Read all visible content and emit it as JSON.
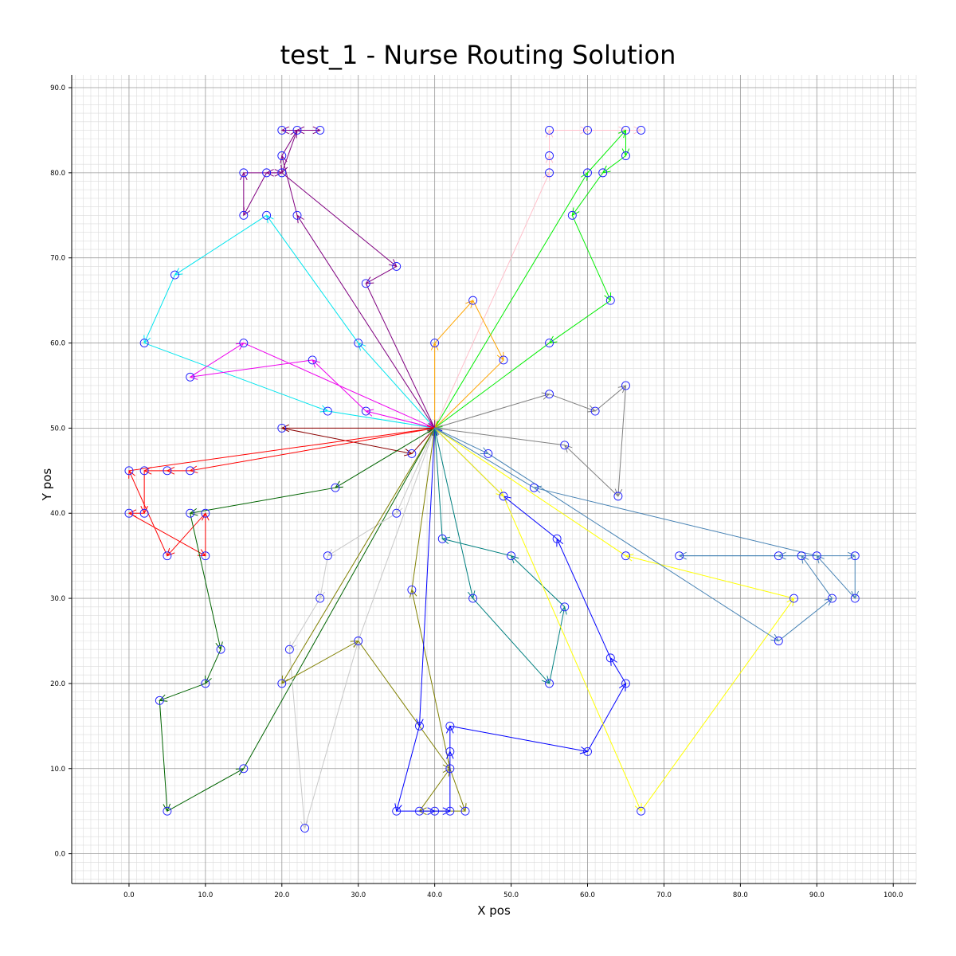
{
  "chart_data": {
    "type": "line",
    "title": "test_1 - Nurse Routing Solution",
    "xlabel": "X pos",
    "ylabel": "Y pos",
    "xlim": [
      -7.5,
      103
    ],
    "ylim": [
      -3.5,
      91.5
    ],
    "xticks": [
      0,
      10,
      20,
      30,
      40,
      50,
      60,
      70,
      80,
      90,
      100
    ],
    "yticks": [
      0,
      10,
      20,
      30,
      40,
      50,
      60,
      70,
      80,
      90
    ],
    "xtick_labels": [
      "0.0",
      "10.0",
      "20.0",
      "30.0",
      "40.0",
      "50.0",
      "60.0",
      "70.0",
      "80.0",
      "90.0",
      "100.0"
    ],
    "ytick_labels": [
      "0.0",
      "10.0",
      "20.0",
      "30.0",
      "40.0",
      "50.0",
      "60.0",
      "70.0",
      "80.0",
      "90.0"
    ],
    "grid": true,
    "minor_grid_step": 1,
    "depot": [
      40,
      50
    ],
    "marker_color": "#1a1aff",
    "series": [
      {
        "color": "#ffc0cb",
        "points": [
          [
            40,
            50
          ],
          [
            55,
            80
          ],
          [
            55,
            82
          ],
          [
            55,
            85
          ],
          [
            60,
            85
          ],
          [
            65,
            85
          ],
          [
            67,
            85
          ]
        ]
      },
      {
        "color": "#00ee00",
        "points": [
          [
            40,
            50
          ],
          [
            60,
            80
          ],
          [
            65,
            85
          ],
          [
            65,
            82
          ],
          [
            62,
            80
          ],
          [
            58,
            75
          ],
          [
            63,
            65
          ],
          [
            55,
            60
          ],
          [
            40,
            50
          ]
        ]
      },
      {
        "color": "#ffa500",
        "points": [
          [
            40,
            50
          ],
          [
            40,
            60
          ],
          [
            45,
            65
          ],
          [
            49,
            58
          ],
          [
            40,
            50
          ]
        ]
      },
      {
        "color": "#808080",
        "points": [
          [
            40,
            50
          ],
          [
            55,
            54
          ],
          [
            61,
            52
          ],
          [
            65,
            55
          ],
          [
            64,
            42
          ],
          [
            57,
            48
          ],
          [
            40,
            50
          ]
        ]
      },
      {
        "color": "#00e5ee",
        "points": [
          [
            40,
            50
          ],
          [
            30,
            60
          ],
          [
            18,
            75
          ],
          [
            6,
            68
          ],
          [
            2,
            60
          ],
          [
            26,
            52
          ],
          [
            40,
            50
          ]
        ]
      },
      {
        "color": "#ee00ee",
        "points": [
          [
            40,
            50
          ],
          [
            31,
            52
          ],
          [
            24,
            58
          ],
          [
            8,
            56
          ],
          [
            15,
            60
          ],
          [
            40,
            50
          ]
        ]
      },
      {
        "color": "#800080",
        "points": [
          [
            40,
            50
          ],
          [
            22,
            75
          ],
          [
            20,
            82
          ],
          [
            22,
            85
          ],
          [
            20,
            85
          ],
          [
            25,
            85
          ],
          [
            22,
            85
          ],
          [
            20,
            80
          ],
          [
            18,
            80
          ],
          [
            15,
            75
          ],
          [
            15,
            80
          ],
          [
            20,
            80
          ],
          [
            35,
            69
          ],
          [
            31,
            67
          ],
          [
            40,
            50
          ]
        ]
      },
      {
        "color": "#8b0000",
        "points": [
          [
            40,
            50
          ],
          [
            20,
            50
          ],
          [
            37,
            47
          ],
          [
            40,
            50
          ]
        ]
      },
      {
        "color": "#ff0000",
        "points": [
          [
            40,
            50
          ],
          [
            8,
            45
          ],
          [
            5,
            45
          ],
          [
            2,
            45
          ],
          [
            2,
            40
          ],
          [
            0,
            40
          ],
          [
            10,
            35
          ],
          [
            10,
            40
          ],
          [
            5,
            35
          ],
          [
            0,
            45
          ],
          [
            40,
            50
          ]
        ]
      },
      {
        "color": "#006400",
        "points": [
          [
            40,
            50
          ],
          [
            27,
            43
          ],
          [
            8,
            40
          ],
          [
            12,
            24
          ],
          [
            10,
            20
          ],
          [
            4,
            18
          ],
          [
            5,
            5
          ],
          [
            15,
            10
          ],
          [
            40,
            50
          ]
        ]
      },
      {
        "color": "#c8c8c8",
        "points": [
          [
            40,
            50
          ],
          [
            35,
            40
          ],
          [
            26,
            35
          ],
          [
            25,
            30
          ],
          [
            21,
            24
          ],
          [
            23,
            3
          ],
          [
            30,
            25
          ],
          [
            40,
            50
          ]
        ]
      },
      {
        "color": "#808000",
        "points": [
          [
            40,
            50
          ],
          [
            20,
            20
          ],
          [
            30,
            25
          ],
          [
            42,
            10
          ],
          [
            44,
            5
          ],
          [
            38,
            5
          ],
          [
            42,
            10
          ],
          [
            37,
            31
          ],
          [
            40,
            50
          ]
        ]
      },
      {
        "color": "#0000ff",
        "points": [
          [
            40,
            50
          ],
          [
            38,
            15
          ],
          [
            35,
            5
          ],
          [
            40,
            5
          ],
          [
            42,
            5
          ],
          [
            42,
            12
          ],
          [
            42,
            15
          ],
          [
            60,
            12
          ],
          [
            65,
            20
          ],
          [
            63,
            23
          ],
          [
            56,
            37
          ],
          [
            49,
            42
          ],
          [
            40,
            50
          ]
        ]
      },
      {
        "color": "#008080",
        "points": [
          [
            40,
            50
          ],
          [
            45,
            30
          ],
          [
            55,
            20
          ],
          [
            57,
            29
          ],
          [
            50,
            35
          ],
          [
            41,
            37
          ],
          [
            40,
            50
          ]
        ]
      },
      {
        "color": "#ffff00",
        "points": [
          [
            40,
            50
          ],
          [
            49,
            42
          ],
          [
            67,
            5
          ],
          [
            87,
            30
          ],
          [
            65,
            35
          ],
          [
            40,
            50
          ]
        ]
      },
      {
        "color": "#4682b4",
        "points": [
          [
            40,
            50
          ],
          [
            47,
            47
          ],
          [
            85,
            25
          ],
          [
            92,
            30
          ],
          [
            88,
            35
          ],
          [
            85,
            35
          ],
          [
            72,
            35
          ],
          [
            95,
            35
          ],
          [
            95,
            30
          ],
          [
            90,
            35
          ],
          [
            53,
            43
          ],
          [
            40,
            50
          ]
        ]
      }
    ]
  }
}
